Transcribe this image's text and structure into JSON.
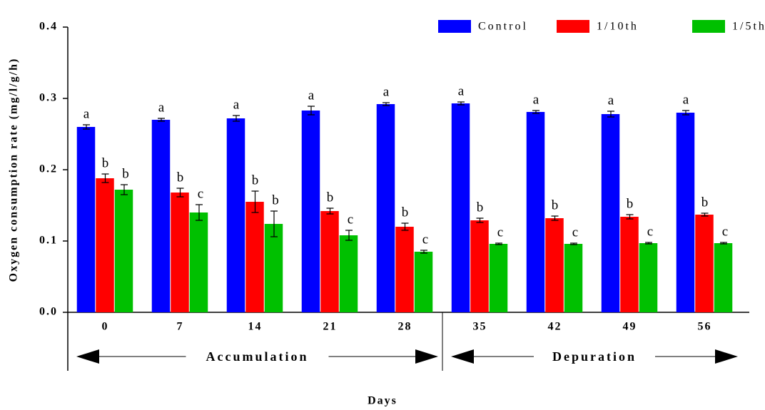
{
  "chart_data": {
    "type": "bar",
    "ylabel": "Oxygen consumption rate (mg/l/g/h)",
    "xlabel": "Days",
    "categories": [
      "0",
      "7",
      "14",
      "21",
      "28",
      "35",
      "42",
      "49",
      "56"
    ],
    "groups": [
      "Accumulation",
      "Depuration"
    ],
    "series": [
      {
        "name": "Control",
        "color": "#0000ff",
        "values": [
          0.26,
          0.27,
          0.272,
          0.283,
          0.292,
          0.293,
          0.281,
          0.278,
          0.28
        ],
        "errors": [
          0.003,
          0.002,
          0.004,
          0.006,
          0.002,
          0.002,
          0.002,
          0.004,
          0.003
        ],
        "letters": [
          "a",
          "a",
          "a",
          "a",
          "a",
          "a",
          "a",
          "a",
          "a"
        ]
      },
      {
        "name": "1/10th",
        "color": "#ff0000",
        "values": [
          0.188,
          0.168,
          0.155,
          0.142,
          0.12,
          0.129,
          0.132,
          0.134,
          0.137
        ],
        "errors": [
          0.006,
          0.006,
          0.015,
          0.004,
          0.005,
          0.003,
          0.003,
          0.003,
          0.002
        ],
        "letters": [
          "b",
          "b",
          "b",
          "b",
          "b",
          "b",
          "b",
          "b",
          "b"
        ]
      },
      {
        "name": "1/5th",
        "color": "#00c000",
        "values": [
          0.172,
          0.14,
          0.124,
          0.108,
          0.085,
          0.096,
          0.096,
          0.097,
          0.097
        ],
        "errors": [
          0.007,
          0.011,
          0.018,
          0.007,
          0.002,
          0.001,
          0.001,
          0.001,
          0.001
        ],
        "letters": [
          "b",
          "c",
          "b",
          "c",
          "c",
          "c",
          "c",
          "c",
          "c"
        ]
      }
    ],
    "ylim": [
      0,
      0.4
    ],
    "yticks": [
      {
        "value": 0,
        "label": "0.0"
      },
      0.1,
      0.2,
      0.3,
      0.4
    ],
    "legend": "top-right"
  }
}
